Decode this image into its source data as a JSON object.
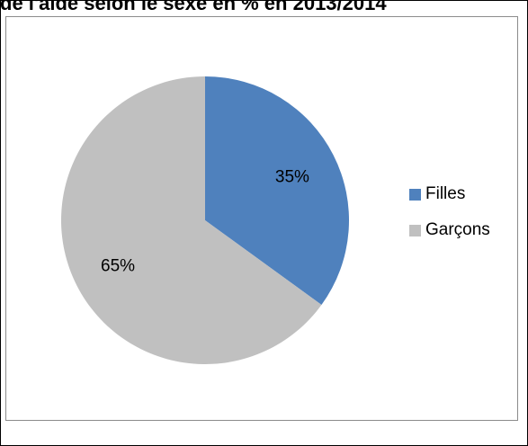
{
  "title": "de l'aide selon le sexe en % en 2013/2014",
  "chart_data": {
    "type": "pie",
    "title": "de l'aide selon le sexe en % en 2013/2014",
    "categories": [
      "Filles",
      "Garçons"
    ],
    "values": [
      35,
      65
    ],
    "value_labels": [
      "35%",
      "65%"
    ],
    "colors": [
      "#4f81bd",
      "#c0c0c0"
    ],
    "legend_position": "right"
  },
  "legend": {
    "items": [
      {
        "label": "Filles",
        "color": "#4f81bd"
      },
      {
        "label": "Garçons",
        "color": "#c0c0c0"
      }
    ]
  }
}
